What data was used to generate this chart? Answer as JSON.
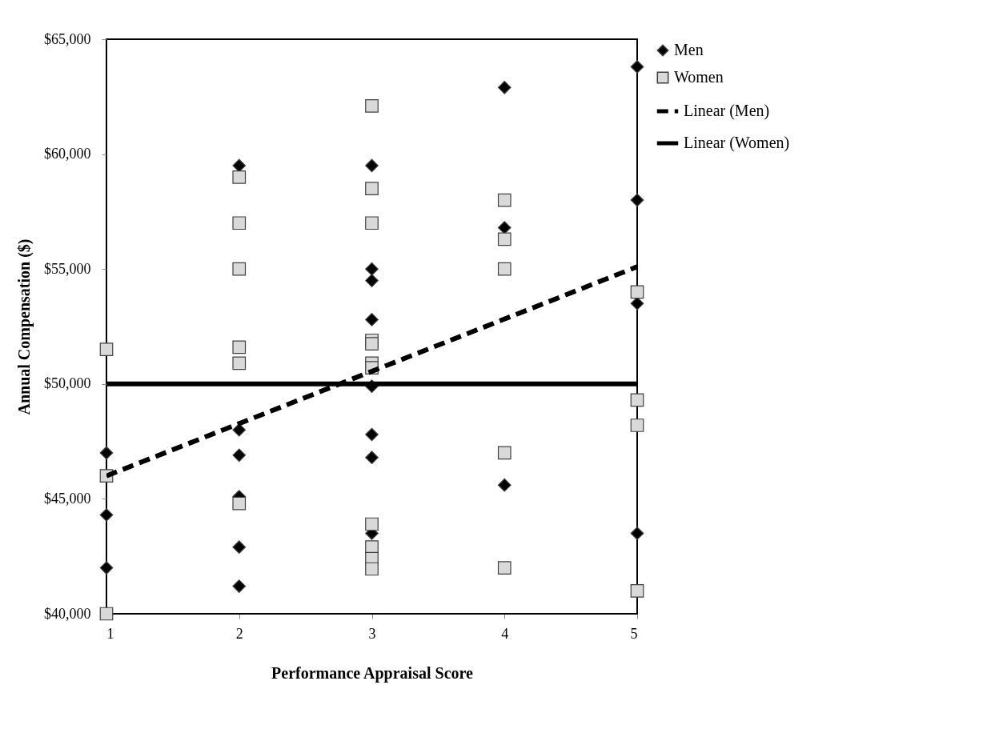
{
  "chart_data": {
    "type": "scatter",
    "xlabel": "Performance Appraisal Score",
    "ylabel": "Annual Compensation ($)",
    "xlim": [
      1,
      5
    ],
    "xticks": [
      1,
      2,
      3,
      4,
      5
    ],
    "ylim": [
      40000,
      65000
    ],
    "yticks": [
      {
        "value": 40000,
        "label": "$40,000"
      },
      {
        "value": 45000,
        "label": "$45,000"
      },
      {
        "value": 50000,
        "label": "$50,000"
      },
      {
        "value": 55000,
        "label": "$55,000"
      },
      {
        "value": 60000,
        "label": "$60,000"
      },
      {
        "value": 65000,
        "label": "$65,000"
      }
    ],
    "grid": false,
    "legend": "right",
    "series": [
      {
        "name": "Men",
        "type": "scatter",
        "marker": "diamond",
        "color": "#000000",
        "x": [
          1,
          1,
          1,
          2,
          2,
          2,
          2,
          2,
          2,
          3,
          3,
          3,
          3,
          3,
          3,
          3,
          3,
          4,
          4,
          4,
          5,
          5,
          5,
          5
        ],
        "values": [
          47000,
          44300,
          42000,
          59500,
          48000,
          46900,
          45100,
          42900,
          41200,
          59500,
          55000,
          54500,
          52800,
          49900,
          47800,
          46800,
          43500,
          62900,
          56800,
          45600,
          63800,
          58000,
          53500,
          43500
        ]
      },
      {
        "name": "Women",
        "type": "scatter",
        "marker": "square",
        "color": "#d9d9d9",
        "x": [
          1,
          1,
          1,
          2,
          2,
          2,
          2,
          2,
          2,
          3,
          3,
          3,
          3,
          3,
          3,
          3,
          3,
          3,
          3,
          3,
          4,
          4,
          4,
          4,
          4,
          5,
          5,
          5,
          5
        ],
        "values": [
          51500,
          46000,
          40000,
          59000,
          57000,
          55000,
          51600,
          50900,
          44800,
          62100,
          58500,
          57000,
          51900,
          51750,
          50900,
          50700,
          43900,
          42900,
          42400,
          41950,
          58000,
          56300,
          55000,
          47000,
          42000,
          54000,
          49300,
          48200,
          41000
        ]
      },
      {
        "name": "Linear (Men)",
        "type": "line",
        "line_style": "dashed",
        "color": "#000000",
        "x": [
          1,
          5
        ],
        "values": [
          46000,
          55100
        ]
      },
      {
        "name": "Linear (Women)",
        "type": "line",
        "line_style": "solid",
        "color": "#000000",
        "x": [
          1,
          5
        ],
        "values": [
          50000,
          50000
        ]
      }
    ]
  }
}
